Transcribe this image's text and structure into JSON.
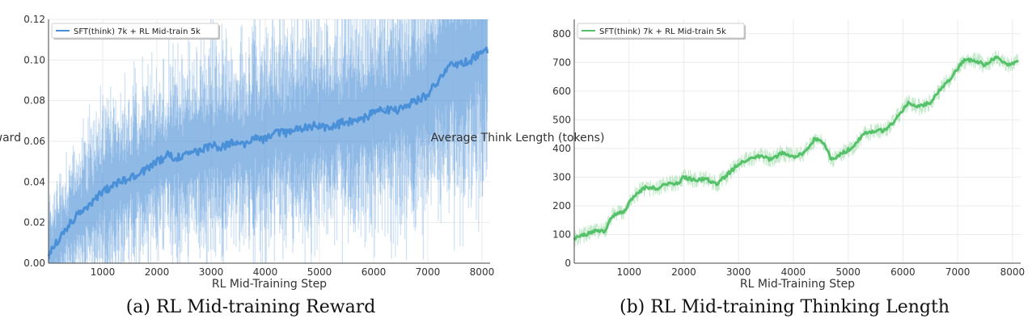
{
  "chart_data": [
    {
      "type": "line",
      "caption": "(a) RL Mid-training Reward",
      "xlabel": "RL Mid-Training Step",
      "ylabel": "Reward",
      "xlim": [
        0,
        8150
      ],
      "ylim": [
        0,
        0.12
      ],
      "xticks": [
        1000,
        2000,
        3000,
        4000,
        5000,
        6000,
        7000,
        8000
      ],
      "yticks": [
        0.0,
        0.02,
        0.04,
        0.06,
        0.08,
        0.1,
        0.12
      ],
      "ytick_labels": [
        "0.00",
        "0.02",
        "0.04",
        "0.06",
        "0.08",
        "0.10",
        "0.12"
      ],
      "grid": true,
      "legend_position": "top-left",
      "series": [
        {
          "name": "SFT(think) 7k + RL Mid-train 5k",
          "color": "#4a90d9",
          "x": [
            0,
            200,
            400,
            600,
            800,
            1000,
            1200,
            1400,
            1600,
            1800,
            2000,
            2200,
            2400,
            2600,
            2800,
            3000,
            3200,
            3400,
            3600,
            3800,
            4000,
            4200,
            4400,
            4600,
            4800,
            5000,
            5200,
            5400,
            5600,
            5800,
            6000,
            6200,
            6400,
            6600,
            6800,
            7000,
            7200,
            7400,
            7600,
            7800,
            8000,
            8100
          ],
          "values": [
            0.004,
            0.012,
            0.02,
            0.026,
            0.03,
            0.035,
            0.038,
            0.041,
            0.043,
            0.046,
            0.05,
            0.053,
            0.052,
            0.055,
            0.055,
            0.058,
            0.057,
            0.06,
            0.058,
            0.062,
            0.061,
            0.065,
            0.064,
            0.066,
            0.067,
            0.068,
            0.066,
            0.069,
            0.07,
            0.071,
            0.074,
            0.076,
            0.075,
            0.078,
            0.08,
            0.083,
            0.09,
            0.097,
            0.098,
            0.1,
            0.104,
            0.105
          ]
        }
      ]
    },
    {
      "type": "line",
      "caption": "(b) RL Mid-training Thinking Length",
      "xlabel": "RL Mid-Training Step",
      "ylabel": "Average Think Length (tokens)",
      "xlim": [
        0,
        8150
      ],
      "ylim": [
        0,
        850
      ],
      "xticks": [
        1000,
        2000,
        3000,
        4000,
        5000,
        6000,
        7000,
        8000
      ],
      "yticks": [
        0,
        100,
        200,
        300,
        400,
        500,
        600,
        700,
        800
      ],
      "ytick_labels": [
        "0",
        "100",
        "200",
        "300",
        "400",
        "500",
        "600",
        "700",
        "800"
      ],
      "grid": true,
      "legend_position": "top-left",
      "series": [
        {
          "name": "SFT(think) 7k + RL Mid-train 5k",
          "color": "#55c26a",
          "x": [
            0,
            200,
            400,
            550,
            700,
            900,
            1100,
            1300,
            1500,
            1700,
            1900,
            2000,
            2200,
            2400,
            2600,
            2800,
            3000,
            3200,
            3400,
            3600,
            3800,
            4000,
            4200,
            4400,
            4550,
            4700,
            4900,
            5100,
            5300,
            5500,
            5700,
            5900,
            6100,
            6300,
            6500,
            6700,
            6900,
            7100,
            7300,
            7500,
            7700,
            7900,
            8100
          ],
          "values": [
            85,
            100,
            115,
            110,
            165,
            180,
            235,
            265,
            260,
            275,
            280,
            300,
            290,
            295,
            275,
            310,
            345,
            365,
            375,
            360,
            385,
            370,
            385,
            435,
            420,
            360,
            385,
            405,
            455,
            460,
            465,
            510,
            560,
            545,
            560,
            610,
            650,
            705,
            710,
            690,
            720,
            690,
            705
          ]
        }
      ]
    }
  ]
}
